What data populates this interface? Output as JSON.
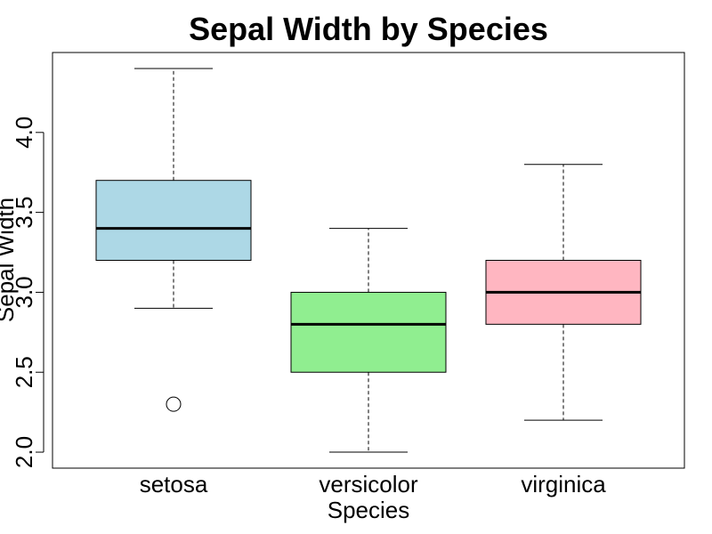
{
  "chart_data": {
    "type": "box",
    "title": "Sepal Width by Species",
    "xlabel": "Species",
    "ylabel": "Sepal Width",
    "ylim": [
      1.9,
      4.5
    ],
    "yticks": [
      {
        "value": 2.0,
        "label": "2.0"
      },
      {
        "value": 2.5,
        "label": "2.5"
      },
      {
        "value": 3.0,
        "label": "3.0"
      },
      {
        "value": 3.5,
        "label": "3.5"
      },
      {
        "value": 4.0,
        "label": "4.0"
      }
    ],
    "categories": [
      "setosa",
      "versicolor",
      "virginica"
    ],
    "boxes": [
      {
        "category": "setosa",
        "min": 2.9,
        "q1": 3.2,
        "median": 3.4,
        "q3": 3.7,
        "max": 4.4,
        "outliers": [
          2.3
        ],
        "color": "#ADD8E6"
      },
      {
        "category": "versicolor",
        "min": 2.0,
        "q1": 2.5,
        "median": 2.8,
        "q3": 3.0,
        "max": 3.4,
        "outliers": [],
        "color": "#90EE90"
      },
      {
        "category": "virginica",
        "min": 2.2,
        "q1": 2.8,
        "median": 3.0,
        "q3": 3.2,
        "max": 3.8,
        "outliers": [],
        "color": "#FFB6C1"
      }
    ],
    "grid": false,
    "legend": "none"
  }
}
